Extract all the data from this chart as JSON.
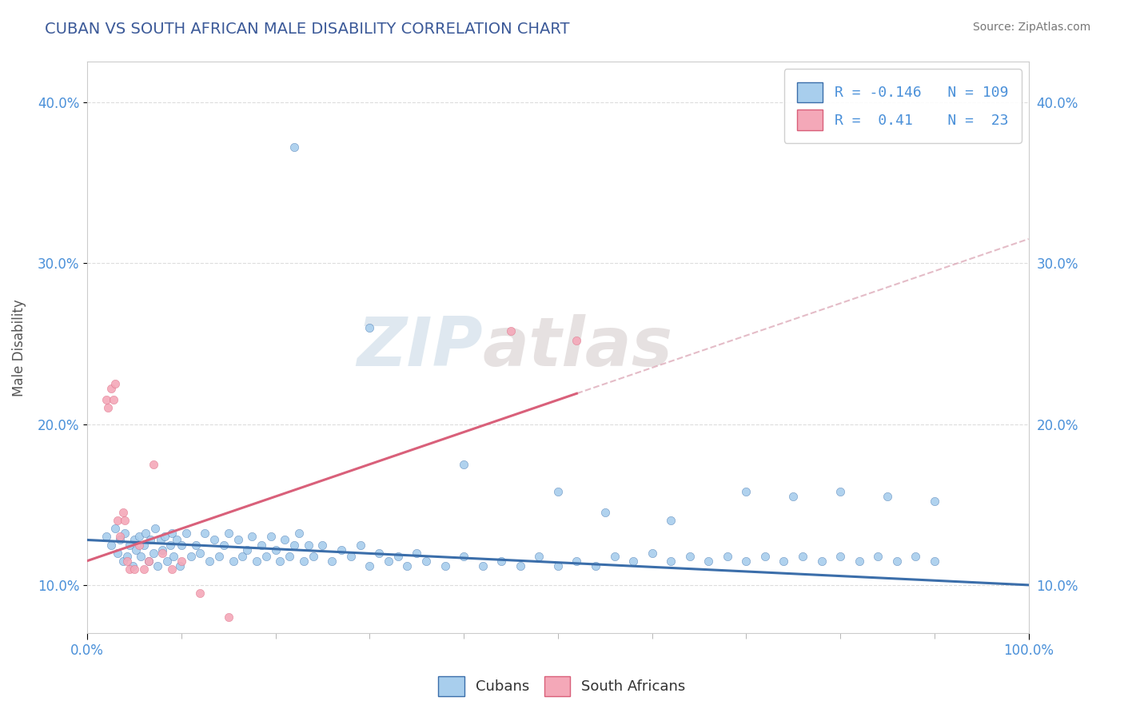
{
  "title": "CUBAN VS SOUTH AFRICAN MALE DISABILITY CORRELATION CHART",
  "source": "Source: ZipAtlas.com",
  "ylabel": "Male Disability",
  "xlim": [
    0.0,
    1.0
  ],
  "ylim": [
    0.07,
    0.425
  ],
  "yticks": [
    0.1,
    0.2,
    0.3,
    0.4
  ],
  "yticklabels": [
    "10.0%",
    "20.0%",
    "30.0%",
    "40.0%"
  ],
  "cuban_color": "#A8CEED",
  "south_african_color": "#F4A8B8",
  "cuban_line_color": "#3B6EAA",
  "south_african_line_color": "#D9607A",
  "dashed_line_color": "#D9A0B0",
  "title_color": "#3B5998",
  "axis_color": "#4A90D9",
  "legend_text_color": "#333333",
  "r_cuban": -0.146,
  "n_cuban": 109,
  "r_sa": 0.41,
  "n_sa": 23,
  "cuban_x": [
    0.02,
    0.025,
    0.03,
    0.032,
    0.035,
    0.038,
    0.04,
    0.042,
    0.045,
    0.048,
    0.05,
    0.052,
    0.055,
    0.057,
    0.06,
    0.062,
    0.065,
    0.067,
    0.07,
    0.072,
    0.075,
    0.078,
    0.08,
    0.082,
    0.085,
    0.088,
    0.09,
    0.092,
    0.095,
    0.098,
    0.1,
    0.105,
    0.11,
    0.115,
    0.12,
    0.125,
    0.13,
    0.135,
    0.14,
    0.145,
    0.15,
    0.155,
    0.16,
    0.165,
    0.17,
    0.175,
    0.18,
    0.185,
    0.19,
    0.195,
    0.2,
    0.205,
    0.21,
    0.215,
    0.22,
    0.225,
    0.23,
    0.235,
    0.24,
    0.25,
    0.26,
    0.27,
    0.28,
    0.29,
    0.3,
    0.31,
    0.32,
    0.33,
    0.34,
    0.35,
    0.36,
    0.38,
    0.4,
    0.42,
    0.44,
    0.46,
    0.48,
    0.5,
    0.52,
    0.54,
    0.56,
    0.58,
    0.6,
    0.62,
    0.64,
    0.66,
    0.68,
    0.7,
    0.72,
    0.74,
    0.76,
    0.78,
    0.8,
    0.82,
    0.84,
    0.86,
    0.88,
    0.9,
    0.22,
    0.3,
    0.4,
    0.5,
    0.55,
    0.62,
    0.7,
    0.75,
    0.8,
    0.85,
    0.9
  ],
  "cuban_y": [
    0.13,
    0.125,
    0.135,
    0.12,
    0.128,
    0.115,
    0.132,
    0.118,
    0.125,
    0.112,
    0.128,
    0.122,
    0.13,
    0.118,
    0.125,
    0.132,
    0.115,
    0.128,
    0.12,
    0.135,
    0.112,
    0.128,
    0.122,
    0.13,
    0.115,
    0.125,
    0.132,
    0.118,
    0.128,
    0.112,
    0.125,
    0.132,
    0.118,
    0.125,
    0.12,
    0.132,
    0.115,
    0.128,
    0.118,
    0.125,
    0.132,
    0.115,
    0.128,
    0.118,
    0.122,
    0.13,
    0.115,
    0.125,
    0.118,
    0.13,
    0.122,
    0.115,
    0.128,
    0.118,
    0.125,
    0.132,
    0.115,
    0.125,
    0.118,
    0.125,
    0.115,
    0.122,
    0.118,
    0.125,
    0.112,
    0.12,
    0.115,
    0.118,
    0.112,
    0.12,
    0.115,
    0.112,
    0.118,
    0.112,
    0.115,
    0.112,
    0.118,
    0.112,
    0.115,
    0.112,
    0.118,
    0.115,
    0.12,
    0.115,
    0.118,
    0.115,
    0.118,
    0.115,
    0.118,
    0.115,
    0.118,
    0.115,
    0.118,
    0.115,
    0.118,
    0.115,
    0.118,
    0.115,
    0.372,
    0.26,
    0.175,
    0.158,
    0.145,
    0.14,
    0.158,
    0.155,
    0.158,
    0.155,
    0.152
  ],
  "sa_x": [
    0.02,
    0.022,
    0.025,
    0.028,
    0.03,
    0.032,
    0.035,
    0.038,
    0.04,
    0.042,
    0.045,
    0.05,
    0.055,
    0.06,
    0.065,
    0.07,
    0.08,
    0.09,
    0.1,
    0.12,
    0.15,
    0.45,
    0.52
  ],
  "sa_y": [
    0.215,
    0.21,
    0.222,
    0.215,
    0.225,
    0.14,
    0.13,
    0.145,
    0.14,
    0.115,
    0.11,
    0.11,
    0.125,
    0.11,
    0.115,
    0.175,
    0.12,
    0.11,
    0.115,
    0.095,
    0.08,
    0.258,
    0.252
  ],
  "watermark_line1": "ZIP",
  "watermark_line2": "atlas",
  "background_color": "#FFFFFF",
  "grid_color": "#DDDDDD"
}
